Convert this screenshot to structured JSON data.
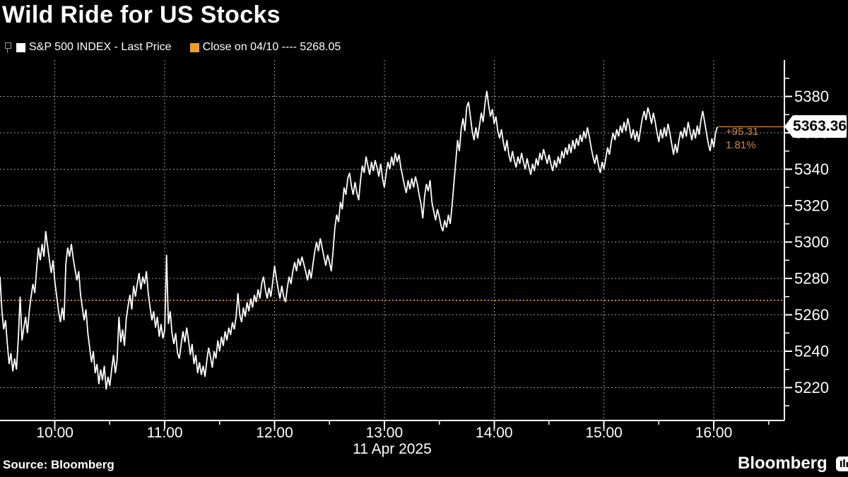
{
  "header": {
    "title": "Wild Ride for US Stocks"
  },
  "legend": {
    "series_label": "S&P 500 INDEX - Last Price",
    "close_label": "Close on 04/10 ---- 5268.05",
    "series_swatch_color": "#ffffff",
    "close_swatch_color": "#f49d1f"
  },
  "chart_data": {
    "type": "line",
    "title": "Wild Ride for US Stocks",
    "date_label": "11 Apr 2025",
    "x_start_time": "09:30",
    "interval_minutes": 1,
    "x_tick_labels": [
      "10:00",
      "11:00",
      "12:00",
      "13:00",
      "14:00",
      "15:00",
      "16:00"
    ],
    "x_tick_minutes": [
      30,
      90,
      150,
      210,
      270,
      330,
      390
    ],
    "x_minor_tick_minutes": [
      60,
      120,
      180,
      240,
      300,
      360,
      420
    ],
    "xlim_minutes": [
      0,
      428.6
    ],
    "y_ticks": [
      5220,
      5240,
      5260,
      5280,
      5300,
      5320,
      5340,
      5360,
      5380
    ],
    "y_minor_ticks": [
      5210,
      5230,
      5250,
      5270,
      5290,
      5310,
      5330,
      5350,
      5370,
      5390
    ],
    "ylim": [
      5202,
      5400
    ],
    "grid": "dotted",
    "legend_position": "top-left",
    "close_line_value": 5268.05,
    "last_price": 5363.36,
    "last_price_label": "5363.36",
    "change_label": "+95.31",
    "change_pct_label": "1.81%",
    "colors": {
      "line": "#ffffff",
      "close_line": "#c08428",
      "connector": "#b5792c",
      "grid": "#999999",
      "axis": "#ffffff",
      "annotation": "#c98b35",
      "background": "#000000"
    },
    "prices": [
      5281,
      5263,
      5252,
      5257,
      5244,
      5233,
      5239,
      5229,
      5236,
      5230,
      5247,
      5270,
      5246,
      5253,
      5259,
      5250,
      5262,
      5270,
      5277,
      5272,
      5285,
      5297,
      5290,
      5299,
      5292,
      5306,
      5298,
      5290,
      5283,
      5290,
      5278,
      5270,
      5262,
      5256,
      5264,
      5257,
      5288,
      5297,
      5292,
      5299,
      5291,
      5285,
      5279,
      5284,
      5271,
      5264,
      5257,
      5263,
      5250,
      5242,
      5234,
      5240,
      5228,
      5233,
      5222,
      5230,
      5224,
      5232,
      5219,
      5226,
      5221,
      5230,
      5238,
      5228,
      5235,
      5259,
      5245,
      5252,
      5243,
      5258,
      5265,
      5271,
      5263,
      5276,
      5270,
      5277,
      5283,
      5274,
      5281,
      5277,
      5284,
      5272,
      5264,
      5257,
      5262,
      5253,
      5259,
      5248,
      5255,
      5247,
      5252,
      5293,
      5255,
      5262,
      5250,
      5244,
      5250,
      5239,
      5236,
      5244,
      5251,
      5245,
      5253,
      5246,
      5238,
      5244,
      5233,
      5238,
      5228,
      5234,
      5227,
      5232,
      5226,
      5235,
      5242,
      5237,
      5231,
      5240,
      5236,
      5246,
      5240,
      5248,
      5243,
      5251,
      5246,
      5253,
      5249,
      5256,
      5252,
      5259,
      5272,
      5260,
      5256,
      5264,
      5259,
      5267,
      5262,
      5269,
      5264,
      5271,
      5267,
      5274,
      5269,
      5277,
      5281,
      5274,
      5269,
      5275,
      5270,
      5278,
      5287,
      5280,
      5274,
      5269,
      5276,
      5270,
      5267,
      5275,
      5281,
      5277,
      5284,
      5289,
      5284,
      5291,
      5287,
      5292,
      5288,
      5284,
      5279,
      5285,
      5280,
      5288,
      5295,
      5300,
      5295,
      5302,
      5297,
      5292,
      5287,
      5293,
      5289,
      5284,
      5295,
      5308,
      5315,
      5311,
      5322,
      5318,
      5330,
      5326,
      5335,
      5338,
      5331,
      5326,
      5333,
      5327,
      5323,
      5334,
      5342,
      5338,
      5347,
      5342,
      5337,
      5344,
      5339,
      5345,
      5341,
      5336,
      5343,
      5335,
      5330,
      5338,
      5344,
      5340,
      5347,
      5342,
      5349,
      5344,
      5348,
      5341,
      5336,
      5331,
      5327,
      5334,
      5329,
      5335,
      5330,
      5336,
      5332,
      5326,
      5321,
      5313,
      5325,
      5332,
      5328,
      5334,
      5322,
      5317,
      5312,
      5318,
      5314,
      5309,
      5306,
      5312,
      5308,
      5315,
      5310,
      5320,
      5332,
      5344,
      5356,
      5350,
      5362,
      5368,
      5361,
      5374,
      5377,
      5369,
      5361,
      5356,
      5363,
      5357,
      5364,
      5371,
      5366,
      5376,
      5383,
      5375,
      5369,
      5373,
      5365,
      5369,
      5361,
      5357,
      5362,
      5355,
      5350,
      5356,
      5348,
      5344,
      5350,
      5345,
      5341,
      5347,
      5343,
      5349,
      5344,
      5340,
      5346,
      5341,
      5337,
      5343,
      5339,
      5346,
      5342,
      5349,
      5345,
      5351,
      5347,
      5343,
      5348,
      5343,
      5339,
      5345,
      5341,
      5347,
      5343,
      5350,
      5346,
      5352,
      5348,
      5354,
      5349,
      5356,
      5351,
      5357,
      5353,
      5359,
      5355,
      5361,
      5357,
      5363,
      5358,
      5352,
      5347,
      5343,
      5348,
      5342,
      5338,
      5344,
      5340,
      5346,
      5352,
      5348,
      5355,
      5360,
      5356,
      5362,
      5358,
      5364,
      5360,
      5366,
      5361,
      5368,
      5363,
      5357,
      5362,
      5356,
      5361,
      5355,
      5362,
      5368,
      5372,
      5367,
      5374,
      5370,
      5365,
      5371,
      5366,
      5360,
      5355,
      5362,
      5357,
      5363,
      5358,
      5365,
      5360,
      5354,
      5348,
      5354,
      5349,
      5356,
      5361,
      5357,
      5363,
      5358,
      5366,
      5361,
      5356,
      5362,
      5357,
      5364,
      5359,
      5367,
      5372,
      5366,
      5360,
      5354,
      5350,
      5357,
      5352,
      5360,
      5363.36
    ]
  },
  "footer": {
    "source": "Source: Bloomberg",
    "brand": "Bloomberg"
  }
}
